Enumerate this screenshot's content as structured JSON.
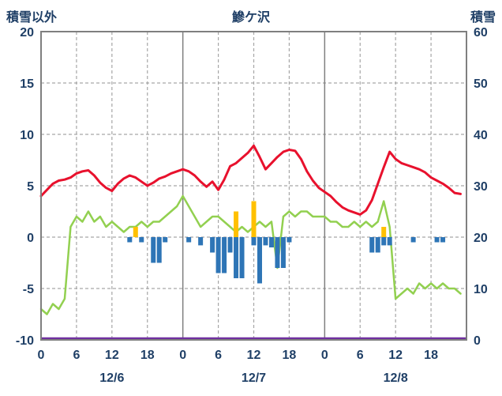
{
  "header": {
    "left_axis_title": "積雪以外",
    "title": "鰺ケ沢",
    "right_axis_title": "積雪"
  },
  "chart_data": {
    "type": "line",
    "title": "鰺ケ沢",
    "left_axis": {
      "label": "積雪以外",
      "min": -10,
      "max": 20,
      "ticks": [
        20,
        15,
        10,
        5,
        0,
        -5,
        -10
      ]
    },
    "right_axis": {
      "label": "積雪",
      "min": 0,
      "max": 60,
      "ticks": [
        60,
        50,
        40,
        30,
        20,
        10,
        0
      ]
    },
    "x_hours_total": 72,
    "x_tick_hours": [
      0,
      6,
      12,
      18,
      24,
      30,
      36,
      42,
      48,
      54,
      60,
      66
    ],
    "x_tick_labels": [
      "0",
      "6",
      "12",
      "18",
      "0",
      "6",
      "12",
      "18",
      "0",
      "6",
      "12",
      "18"
    ],
    "date_labels": [
      {
        "label": "12/6",
        "hour": 12
      },
      {
        "label": "12/7",
        "hour": 36
      },
      {
        "label": "12/8",
        "hour": 60
      }
    ],
    "grid": {
      "h_dashed_values": [
        15,
        10,
        5,
        0,
        -5
      ],
      "v_dashed_hours": [
        6,
        12,
        18,
        30,
        36,
        42,
        54,
        60,
        66
      ],
      "v_solid_hours": [
        24,
        48
      ]
    },
    "series": [
      {
        "name": "red-line",
        "type": "line",
        "axis": "left",
        "color": "#e8112d",
        "width": 3,
        "values": [
          4.0,
          4.6,
          5.2,
          5.5,
          5.6,
          5.8,
          6.2,
          6.4,
          6.5,
          6.0,
          5.3,
          4.8,
          4.5,
          5.2,
          5.7,
          6.0,
          5.8,
          5.4,
          5.0,
          5.3,
          5.7,
          5.9,
          6.2,
          6.4,
          6.6,
          6.4,
          6.0,
          5.4,
          4.9,
          5.4,
          4.6,
          5.6,
          6.9,
          7.2,
          7.7,
          8.2,
          8.9,
          7.8,
          6.6,
          7.2,
          7.8,
          8.3,
          8.5,
          8.4,
          7.6,
          6.4,
          5.5,
          4.8,
          4.4,
          4.0,
          3.4,
          2.9,
          2.6,
          2.4,
          2.2,
          2.6,
          3.6,
          5.2,
          6.8,
          8.3,
          7.6,
          7.2,
          7.0,
          6.8,
          6.6,
          6.3,
          5.8,
          5.5,
          5.2,
          4.8,
          4.3,
          4.2
        ]
      },
      {
        "name": "green-line",
        "type": "line",
        "axis": "right",
        "color": "#92d050",
        "width": 2.5,
        "values": [
          6,
          5,
          7,
          6,
          8,
          22,
          24,
          23,
          25,
          23,
          24,
          22,
          23,
          22,
          21,
          22,
          22,
          23,
          22,
          23,
          23,
          24,
          25,
          26,
          28,
          26,
          24,
          22,
          23,
          24,
          24,
          23,
          22,
          21,
          22,
          21,
          22,
          23,
          22,
          23,
          14,
          24,
          25,
          24,
          25,
          25,
          24,
          24,
          24,
          23,
          23,
          22,
          22,
          23,
          22,
          23,
          22,
          23,
          27,
          22,
          8,
          9,
          10,
          9,
          11,
          10,
          11,
          10,
          11,
          10,
          10,
          9
        ]
      },
      {
        "name": "blue-bars",
        "type": "bar",
        "axis": "left",
        "color": "#2e75b6",
        "values": [
          0,
          0,
          0,
          0,
          0,
          0,
          0,
          0,
          0,
          0,
          0,
          0,
          0,
          0,
          0,
          -0.5,
          0,
          -0.5,
          0,
          -2.5,
          -2.5,
          -0.5,
          0,
          0,
          0,
          -0.5,
          0,
          -0.8,
          0,
          -1.5,
          -3.5,
          -3.5,
          -1.5,
          -4,
          -4,
          0,
          -0.8,
          -4.5,
          -0.8,
          -1,
          -3,
          -3,
          -0.5,
          0,
          0,
          0,
          0,
          0,
          0,
          0,
          0,
          0,
          0,
          0,
          0,
          0,
          -1.5,
          -1.5,
          -0.8,
          -0.8,
          0,
          0,
          0,
          -0.5,
          0,
          0,
          0,
          -0.5,
          -0.5,
          0,
          0,
          0
        ]
      },
      {
        "name": "orange-bars",
        "type": "bar",
        "axis": "left",
        "color": "#ffc000",
        "values": [
          0,
          0,
          0,
          0,
          0,
          0,
          0,
          0,
          0,
          0,
          0,
          0,
          0,
          0,
          0,
          0,
          1,
          0,
          0,
          0,
          0,
          0,
          0,
          0,
          0,
          0,
          0,
          0,
          0,
          0,
          0,
          0,
          0,
          2.5,
          0,
          0,
          3.5,
          0,
          0,
          0,
          0,
          0,
          0,
          0,
          0,
          0,
          0,
          0,
          0,
          0,
          0,
          0,
          0,
          0,
          0,
          0,
          0,
          0,
          1,
          0,
          0,
          0,
          0,
          0,
          0,
          0,
          0,
          0,
          0,
          0,
          0,
          0
        ]
      },
      {
        "name": "purple-line",
        "type": "constant-line",
        "axis": "right",
        "color": "#7030a0",
        "width": 2.5,
        "constant": 0
      }
    ],
    "style": {
      "border_color": "#7f7f7f",
      "grid_color": "#a6a6a6",
      "text_color": "#1f3f66"
    }
  }
}
